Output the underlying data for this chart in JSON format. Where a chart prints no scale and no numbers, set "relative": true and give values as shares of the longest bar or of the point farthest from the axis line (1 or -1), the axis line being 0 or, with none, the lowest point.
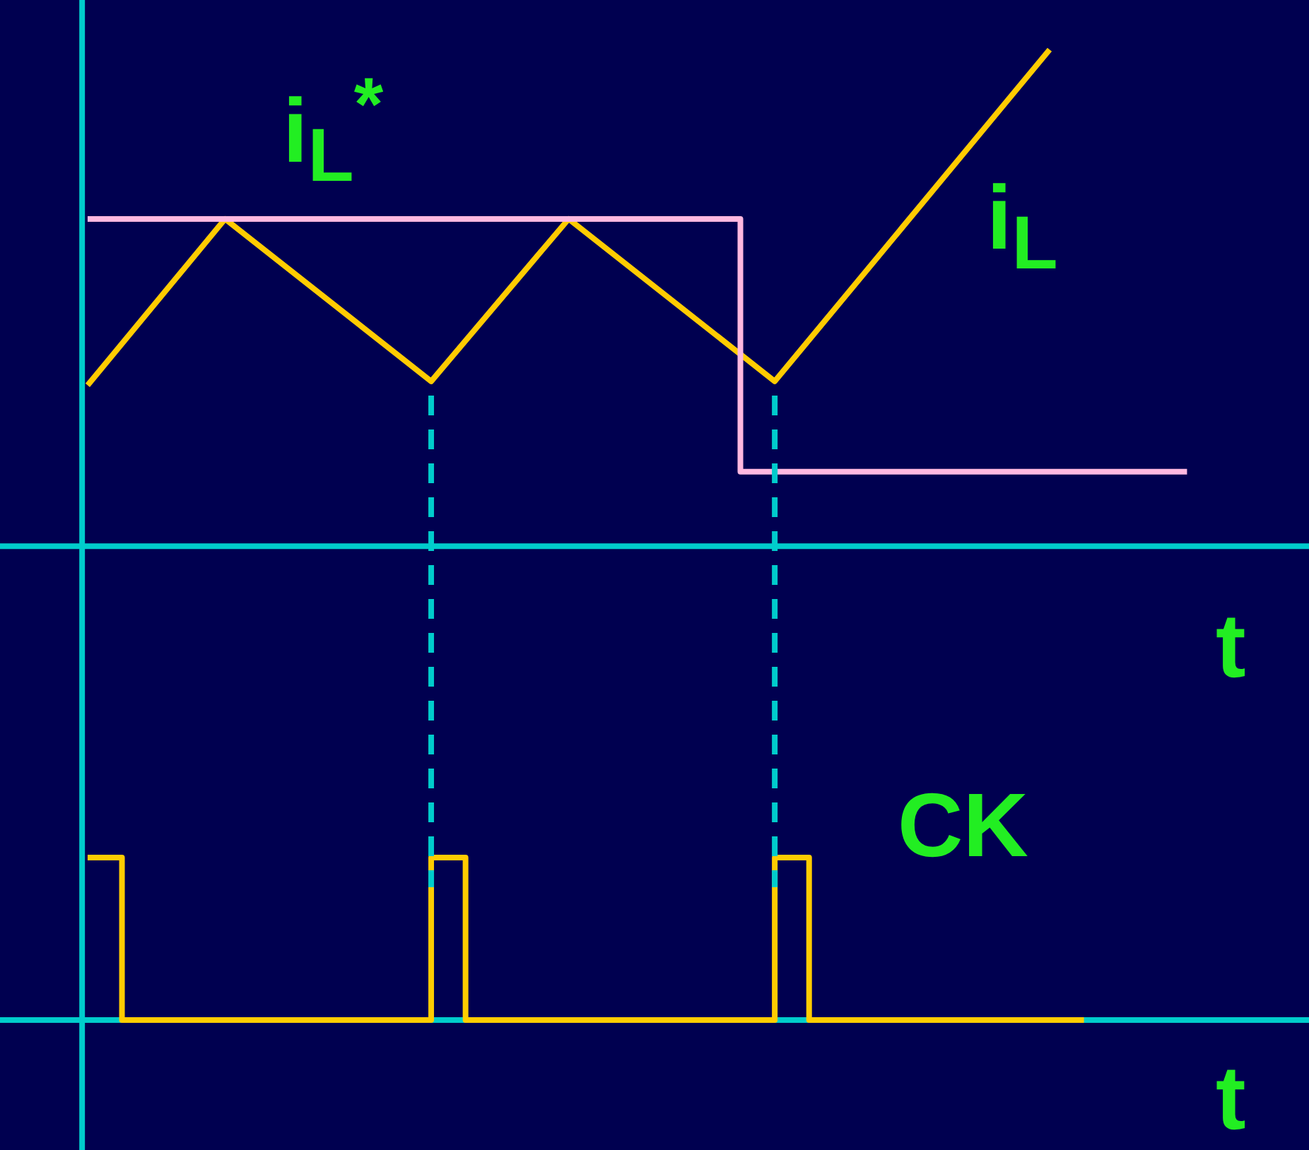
{
  "chart_data": [
    {
      "type": "line",
      "relative": true,
      "xlabel": "t",
      "categories": [
        null,
        null,
        null,
        null,
        null,
        null,
        null,
        null,
        null,
        null,
        null,
        null,
        null,
        null,
        null,
        null,
        null,
        null,
        null,
        null,
        null,
        null,
        null,
        null,
        null,
        null,
        null,
        null,
        null,
        null,
        null,
        null,
        null
      ],
      "series": [
        {
          "name": "i$_{L}$",
          "color": "#ffcc00",
          "values": [
            0.324,
            null,
            null,
            null,
            0.659,
            null,
            null,
            null,
            null,
            null,
            0.332,
            null,
            null,
            null,
            0.659,
            null,
            null,
            null,
            null,
            null,
            0.332,
            null,
            null,
            null,
            null,
            null,
            null,
            null,
            1,
            null,
            null,
            null,
            null
          ]
        },
        {
          "name": "i$_{L}$$^{*}$",
          "type": "step",
          "color": "#ffb8e0",
          "values": [
            0.659,
            null,
            null,
            null,
            null,
            null,
            null,
            null,
            null,
            null,
            null,
            null,
            null,
            null,
            null,
            null,
            null,
            null,
            null,
            0.15,
            null,
            null,
            null,
            null,
            null,
            null,
            null,
            null,
            null,
            null,
            null,
            null,
            0.15
          ]
        }
      ]
    },
    {
      "type": "step",
      "relative": true,
      "xlabel": "t",
      "categories": [
        null,
        null,
        null,
        null,
        null,
        null,
        null,
        null,
        null,
        null,
        null,
        null,
        null,
        null,
        null,
        null,
        null,
        null,
        null,
        null,
        null,
        null,
        null,
        null,
        null,
        null,
        null,
        null,
        null,
        null
      ],
      "series": [
        {
          "name": "CK",
          "color": "#ffcc00",
          "values": [
            1,
            0,
            null,
            null,
            null,
            null,
            null,
            null,
            null,
            null,
            1,
            0,
            null,
            null,
            null,
            null,
            null,
            null,
            null,
            null,
            1,
            0,
            null,
            null,
            null,
            null,
            null,
            null,
            null,
            0
          ]
        }
      ]
    }
  ]
}
